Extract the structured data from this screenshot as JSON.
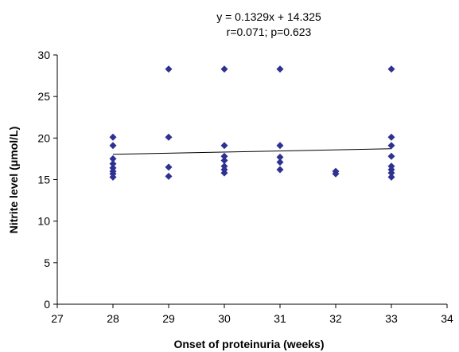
{
  "chart_data": {
    "type": "scatter",
    "title": "",
    "xlabel": "Onset of proteinuria (weeks)",
    "ylabel": "Nitrite level (μmol/L)",
    "xlim": [
      27,
      34
    ],
    "ylim": [
      0,
      30
    ],
    "x_ticks": [
      "27",
      "28",
      "29",
      "30",
      "31",
      "32",
      "33",
      "34"
    ],
    "y_ticks": [
      "0",
      "5",
      "10",
      "15",
      "20",
      "25",
      "30"
    ],
    "grid": false,
    "legend": "none",
    "annotations": [
      "y = 0.1329x + 14.325",
      "r=0.071; p=0.623"
    ],
    "marker_color": "#2e3192",
    "points": [
      {
        "x": 28,
        "y": 20.1
      },
      {
        "x": 28,
        "y": 19.1
      },
      {
        "x": 28,
        "y": 17.5
      },
      {
        "x": 28,
        "y": 16.9
      },
      {
        "x": 28,
        "y": 16.4
      },
      {
        "x": 28,
        "y": 16.0
      },
      {
        "x": 28,
        "y": 15.7
      },
      {
        "x": 28,
        "y": 15.3
      },
      {
        "x": 29,
        "y": 28.3
      },
      {
        "x": 29,
        "y": 20.1
      },
      {
        "x": 29,
        "y": 16.5
      },
      {
        "x": 29,
        "y": 15.4
      },
      {
        "x": 30,
        "y": 28.3
      },
      {
        "x": 30,
        "y": 19.1
      },
      {
        "x": 30,
        "y": 17.8
      },
      {
        "x": 30,
        "y": 17.3
      },
      {
        "x": 30,
        "y": 16.6
      },
      {
        "x": 30,
        "y": 16.2
      },
      {
        "x": 30,
        "y": 15.8
      },
      {
        "x": 31,
        "y": 28.3
      },
      {
        "x": 31,
        "y": 19.1
      },
      {
        "x": 31,
        "y": 17.7
      },
      {
        "x": 31,
        "y": 17.1
      },
      {
        "x": 31,
        "y": 16.2
      },
      {
        "x": 32,
        "y": 16.0
      },
      {
        "x": 32,
        "y": 15.7
      },
      {
        "x": 33,
        "y": 28.3
      },
      {
        "x": 33,
        "y": 20.1
      },
      {
        "x": 33,
        "y": 19.1
      },
      {
        "x": 33,
        "y": 17.8
      },
      {
        "x": 33,
        "y": 16.6
      },
      {
        "x": 33,
        "y": 16.2
      },
      {
        "x": 33,
        "y": 15.8
      },
      {
        "x": 33,
        "y": 15.3
      }
    ],
    "trendline": {
      "slope": 0.1329,
      "intercept": 14.325,
      "x_range": [
        28,
        33
      ]
    }
  }
}
